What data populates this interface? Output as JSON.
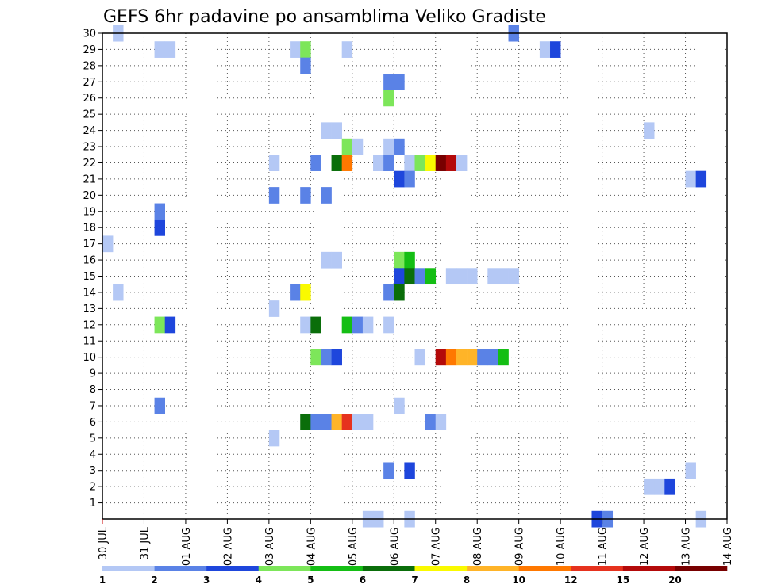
{
  "chart_data": {
    "type": "heatmap",
    "title": "GEFS 6hr padavine po ansamblima Veliko Gradiste",
    "xlabel": "",
    "ylabel": "",
    "x_ticks": [
      "30 JUL",
      "31 JUL",
      "01 AUG",
      "02 AUG",
      "03 AUG",
      "04 AUG",
      "05 AUG",
      "06 AUG",
      "07 AUG",
      "08 AUG",
      "09 AUG",
      "10 AUG",
      "11 AUG",
      "12 AUG",
      "13 AUG",
      "14 AUG"
    ],
    "x_range": [
      0,
      60
    ],
    "y_ticks": [
      1,
      2,
      3,
      4,
      5,
      6,
      7,
      8,
      9,
      10,
      11,
      12,
      13,
      14,
      15,
      16,
      17,
      18,
      19,
      20,
      21,
      22,
      23,
      24,
      25,
      26,
      27,
      28,
      29,
      30
    ],
    "y_range": [
      0,
      30
    ],
    "grid": true,
    "legend_placement": "bottom",
    "legend": {
      "levels": [
        "1",
        "2",
        "3",
        "4",
        "5",
        "6",
        "7",
        "8",
        "10",
        "12",
        "15",
        "20"
      ],
      "colors": [
        "#b4c8f5",
        "#5a82e6",
        "#1e46dc",
        "#7de65a",
        "#14be14",
        "#0a6e0a",
        "#fafa00",
        "#ffb428",
        "#ff7800",
        "#e6321e",
        "#b40a0a",
        "#780000"
      ]
    },
    "cells": [
      {
        "m": 30,
        "s": 1,
        "c": 0
      },
      {
        "m": 30,
        "s": 39,
        "c": 1
      },
      {
        "m": 29,
        "s": 5,
        "c": 0
      },
      {
        "m": 29,
        "s": 6,
        "c": 0
      },
      {
        "m": 29,
        "s": 18,
        "c": 0
      },
      {
        "m": 29,
        "s": 19,
        "c": 3
      },
      {
        "m": 29,
        "s": 23,
        "c": 0
      },
      {
        "m": 29,
        "s": 42,
        "c": 0
      },
      {
        "m": 29,
        "s": 43,
        "c": 2
      },
      {
        "m": 28,
        "s": 19,
        "c": 1
      },
      {
        "m": 27,
        "s": 27,
        "c": 1
      },
      {
        "m": 27,
        "s": 28,
        "c": 1
      },
      {
        "m": 26,
        "s": 27,
        "c": 3
      },
      {
        "m": 24,
        "s": 21,
        "c": 0
      },
      {
        "m": 24,
        "s": 22,
        "c": 0
      },
      {
        "m": 24,
        "s": 52,
        "c": 0
      },
      {
        "m": 23,
        "s": 23,
        "c": 3
      },
      {
        "m": 23,
        "s": 24,
        "c": 0
      },
      {
        "m": 23,
        "s": 27,
        "c": 0
      },
      {
        "m": 23,
        "s": 28,
        "c": 1
      },
      {
        "m": 22,
        "s": 16,
        "c": 0
      },
      {
        "m": 22,
        "s": 20,
        "c": 1
      },
      {
        "m": 22,
        "s": 22,
        "c": 5
      },
      {
        "m": 22,
        "s": 23,
        "c": 8
      },
      {
        "m": 22,
        "s": 26,
        "c": 0
      },
      {
        "m": 22,
        "s": 27,
        "c": 1
      },
      {
        "m": 22,
        "s": 29,
        "c": 0
      },
      {
        "m": 22,
        "s": 30,
        "c": 3
      },
      {
        "m": 22,
        "s": 31,
        "c": 6
      },
      {
        "m": 22,
        "s": 32,
        "c": 11
      },
      {
        "m": 22,
        "s": 33,
        "c": 10
      },
      {
        "m": 22,
        "s": 34,
        "c": 0
      },
      {
        "m": 21,
        "s": 28,
        "c": 2
      },
      {
        "m": 21,
        "s": 29,
        "c": 1
      },
      {
        "m": 21,
        "s": 56,
        "c": 0
      },
      {
        "m": 21,
        "s": 57,
        "c": 2
      },
      {
        "m": 20,
        "s": 16,
        "c": 1
      },
      {
        "m": 20,
        "s": 19,
        "c": 1
      },
      {
        "m": 20,
        "s": 21,
        "c": 1
      },
      {
        "m": 19,
        "s": 5,
        "c": 1
      },
      {
        "m": 18,
        "s": 5,
        "c": 2
      },
      {
        "m": 17,
        "s": 0,
        "c": 0
      },
      {
        "m": 16,
        "s": 21,
        "c": 0
      },
      {
        "m": 16,
        "s": 22,
        "c": 0
      },
      {
        "m": 16,
        "s": 28,
        "c": 3
      },
      {
        "m": 16,
        "s": 29,
        "c": 4
      },
      {
        "m": 15,
        "s": 28,
        "c": 2
      },
      {
        "m": 15,
        "s": 29,
        "c": 5
      },
      {
        "m": 15,
        "s": 30,
        "c": 1
      },
      {
        "m": 15,
        "s": 31,
        "c": 4
      },
      {
        "m": 15,
        "s": 33,
        "c": 0
      },
      {
        "m": 15,
        "s": 34,
        "c": 0
      },
      {
        "m": 15,
        "s": 35,
        "c": 0
      },
      {
        "m": 15,
        "s": 37,
        "c": 0
      },
      {
        "m": 15,
        "s": 38,
        "c": 0
      },
      {
        "m": 15,
        "s": 39,
        "c": 0
      },
      {
        "m": 14,
        "s": 1,
        "c": 0
      },
      {
        "m": 14,
        "s": 18,
        "c": 1
      },
      {
        "m": 14,
        "s": 19,
        "c": 6
      },
      {
        "m": 14,
        "s": 27,
        "c": 1
      },
      {
        "m": 14,
        "s": 28,
        "c": 5
      },
      {
        "m": 13,
        "s": 16,
        "c": 0
      },
      {
        "m": 12,
        "s": 5,
        "c": 3
      },
      {
        "m": 12,
        "s": 6,
        "c": 2
      },
      {
        "m": 12,
        "s": 19,
        "c": 0
      },
      {
        "m": 12,
        "s": 20,
        "c": 5
      },
      {
        "m": 12,
        "s": 23,
        "c": 4
      },
      {
        "m": 12,
        "s": 24,
        "c": 1
      },
      {
        "m": 12,
        "s": 25,
        "c": 0
      },
      {
        "m": 12,
        "s": 27,
        "c": 0
      },
      {
        "m": 10,
        "s": 20,
        "c": 3
      },
      {
        "m": 10,
        "s": 21,
        "c": 1
      },
      {
        "m": 10,
        "s": 22,
        "c": 2
      },
      {
        "m": 10,
        "s": 30,
        "c": 0
      },
      {
        "m": 10,
        "s": 32,
        "c": 10
      },
      {
        "m": 10,
        "s": 33,
        "c": 8
      },
      {
        "m": 10,
        "s": 34,
        "c": 7
      },
      {
        "m": 10,
        "s": 35,
        "c": 7
      },
      {
        "m": 10,
        "s": 36,
        "c": 1
      },
      {
        "m": 10,
        "s": 37,
        "c": 1
      },
      {
        "m": 10,
        "s": 38,
        "c": 4
      },
      {
        "m": 7,
        "s": 5,
        "c": 1
      },
      {
        "m": 7,
        "s": 28,
        "c": 0
      },
      {
        "m": 6,
        "s": 19,
        "c": 5
      },
      {
        "m": 6,
        "s": 20,
        "c": 1
      },
      {
        "m": 6,
        "s": 21,
        "c": 1
      },
      {
        "m": 6,
        "s": 22,
        "c": 7
      },
      {
        "m": 6,
        "s": 23,
        "c": 9
      },
      {
        "m": 6,
        "s": 24,
        "c": 0
      },
      {
        "m": 6,
        "s": 25,
        "c": 0
      },
      {
        "m": 6,
        "s": 31,
        "c": 1
      },
      {
        "m": 6,
        "s": 32,
        "c": 0
      },
      {
        "m": 5,
        "s": 16,
        "c": 0
      },
      {
        "m": 3,
        "s": 27,
        "c": 1
      },
      {
        "m": 3,
        "s": 29,
        "c": 2
      },
      {
        "m": 3,
        "s": 56,
        "c": 0
      },
      {
        "m": 2,
        "s": 52,
        "c": 0
      },
      {
        "m": 2,
        "s": 53,
        "c": 0
      },
      {
        "m": 2,
        "s": 54,
        "c": 2
      },
      {
        "m": 0,
        "s": 25,
        "c": 0
      },
      {
        "m": 0,
        "s": 26,
        "c": 0
      },
      {
        "m": 0,
        "s": 29,
        "c": 0
      },
      {
        "m": 0,
        "s": 47,
        "c": 2
      },
      {
        "m": 0,
        "s": 48,
        "c": 1
      },
      {
        "m": 0,
        "s": 57,
        "c": 0
      }
    ]
  }
}
